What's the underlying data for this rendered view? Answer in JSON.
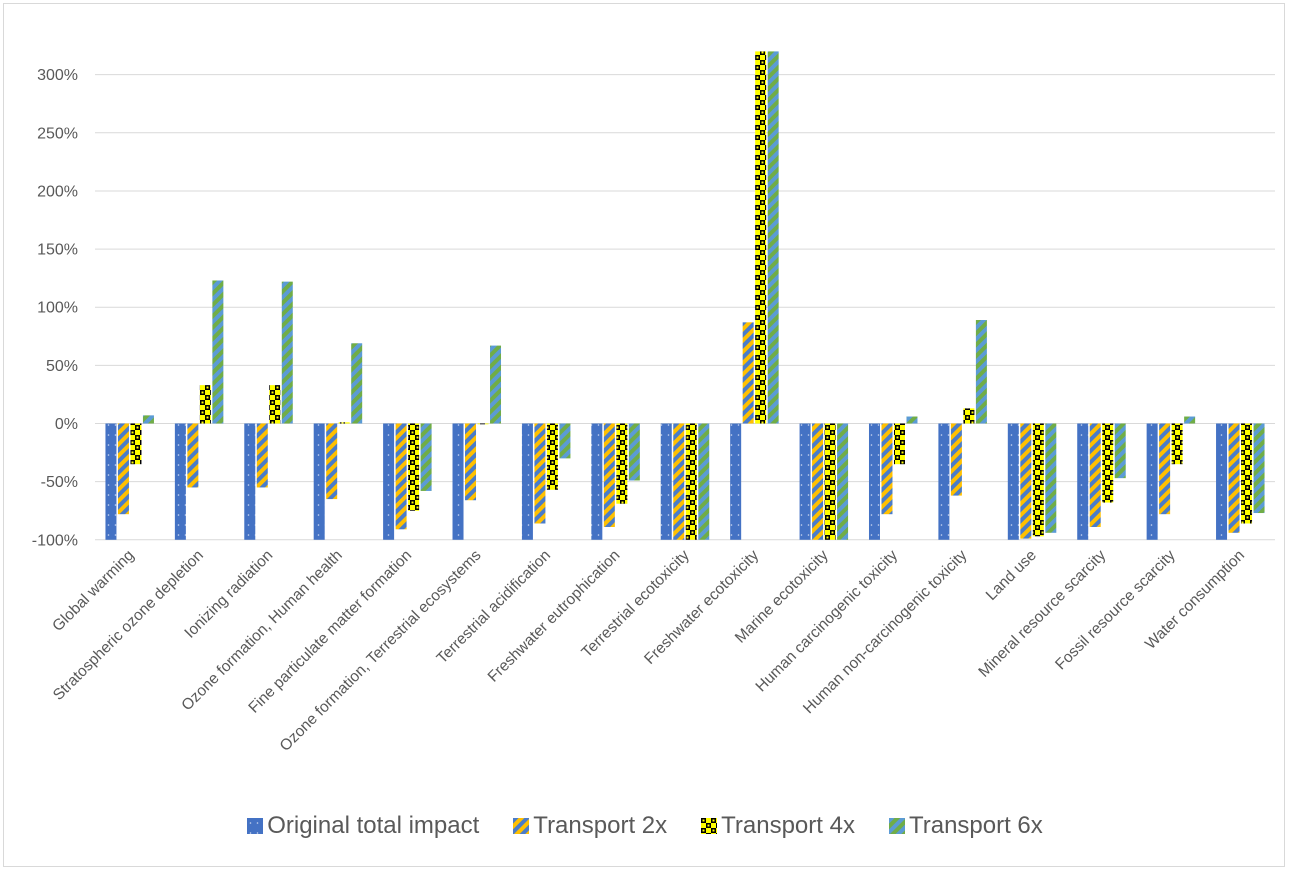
{
  "chart_data": {
    "type": "bar",
    "title": "",
    "xlabel": "",
    "ylabel": "",
    "ylim": [
      -100,
      320
    ],
    "yticks": [
      -100,
      -50,
      0,
      50,
      100,
      150,
      200,
      250,
      300
    ],
    "ytick_labels": [
      "-100%",
      "-50%",
      "0%",
      "50%",
      "100%",
      "150%",
      "200%",
      "250%",
      "300%"
    ],
    "grid": true,
    "legend_position": "bottom",
    "categories": [
      "Global warming",
      "Stratospheric ozone depletion",
      "Ionizing radiation",
      "Ozone formation, Human health",
      "Fine particulate matter formation",
      "Ozone formation, Terrestrial ecosystems",
      "Terrestrial acidification",
      "Freshwater eutrophication",
      "Terrestrial ecotoxicity",
      "Freshwater ecotoxicity",
      "Marine ecotoxicity",
      "Human carcinogenic toxicity",
      "Human non-carcinogenic toxicity",
      "Land use",
      "Mineral resource scarcity",
      "Fossil resource scarcity",
      "Water consumption"
    ],
    "series": [
      {
        "name": "Original total impact",
        "color": "#4472c4",
        "pattern": "dotted",
        "values": [
          -100,
          -100,
          -100,
          -100,
          -100,
          -100,
          -100,
          -100,
          -100,
          -100,
          -100,
          -100,
          -100,
          -100,
          -100,
          -100,
          -100
        ]
      },
      {
        "name": "Transport 2x",
        "color": "#ffc000",
        "pattern": "diagonal-stripes",
        "values": [
          -78,
          -55,
          -55,
          -65,
          -91,
          -66,
          -86,
          -89,
          -102,
          87,
          -102,
          -78,
          -62,
          -99,
          -89,
          -78,
          -94
        ]
      },
      {
        "name": "Transport 4x",
        "color": "#ffff00",
        "pattern": "checker",
        "values": [
          -35,
          33,
          33,
          1,
          -75,
          0,
          -57,
          -69,
          -102,
          320,
          -102,
          -35,
          13,
          -97,
          -68,
          -35,
          -86
        ]
      },
      {
        "name": "Transport 6x",
        "color": "#70ad47",
        "pattern": "diagonal-stripes",
        "values": [
          7,
          123,
          122,
          69,
          -58,
          67,
          -30,
          -49,
          -102,
          320,
          -102,
          6,
          89,
          -94,
          -47,
          6,
          -77
        ]
      }
    ]
  }
}
